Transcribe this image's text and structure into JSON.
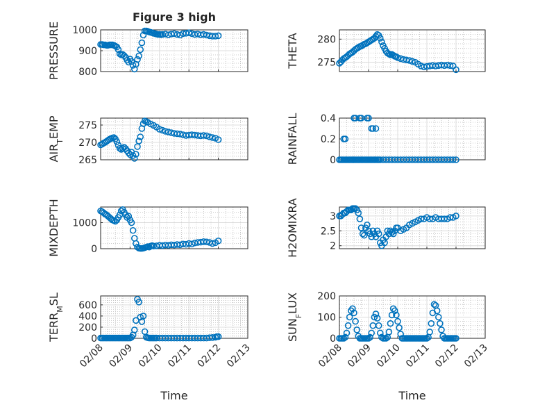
{
  "figure": {
    "title": "Figure 3 high"
  },
  "colors": {
    "marker": "#0072BD",
    "axis": "#262626",
    "grid": "#dcdcdc"
  },
  "chart_data": [
    {
      "type": "scatter",
      "id": "pressure",
      "ylabel": "PRESSURE",
      "title": "Figure 3 high",
      "xlim": [
        0,
        5
      ],
      "ylim": [
        800,
        1000
      ],
      "yticks": [
        800,
        900,
        1000
      ],
      "xticks": [
        0,
        1,
        2,
        3,
        4,
        5
      ],
      "xticklabels": [
        "02/08",
        "02/09",
        "02/10",
        "02/11",
        "02/12",
        "02/13"
      ],
      "x": [
        0.0,
        0.05,
        0.1,
        0.15,
        0.2,
        0.25,
        0.3,
        0.35,
        0.4,
        0.45,
        0.5,
        0.55,
        0.6,
        0.65,
        0.7,
        0.75,
        0.8,
        0.85,
        0.9,
        0.95,
        1.0,
        1.05,
        1.1,
        1.15,
        1.2,
        1.25,
        1.3,
        1.35,
        1.4,
        1.45,
        1.5,
        1.55,
        1.6,
        1.65,
        1.7,
        1.75,
        1.8,
        1.85,
        1.9,
        1.95,
        2.0,
        2.05,
        2.1,
        2.2,
        2.3,
        2.4,
        2.5,
        2.6,
        2.7,
        2.8,
        2.9,
        3.0,
        3.1,
        3.2,
        3.3,
        3.4,
        3.5,
        3.6,
        3.7,
        3.8,
        3.9,
        4.0
      ],
      "y": [
        930,
        930,
        928,
        928,
        926,
        926,
        928,
        928,
        928,
        926,
        922,
        918,
        905,
        885,
        880,
        882,
        876,
        868,
        855,
        845,
        860,
        848,
        830,
        812,
        835,
        858,
        875,
        905,
        938,
        975,
        995,
        995,
        993,
        990,
        988,
        986,
        984,
        982,
        980,
        978,
        978,
        977,
        978,
        980,
        976,
        980,
        982,
        978,
        975,
        982,
        984,
        986,
        982,
        978,
        980,
        976,
        978,
        975,
        972,
        970,
        970,
        972
      ]
    },
    {
      "type": "scatter",
      "id": "theta",
      "ylabel": "THETA",
      "xlim": [
        0,
        5
      ],
      "ylim": [
        273,
        282
      ],
      "yticks": [
        275,
        280
      ],
      "xticks": [
        0,
        1,
        2,
        3,
        4,
        5
      ],
      "xticklabels": [
        "02/08",
        "02/09",
        "02/10",
        "02/11",
        "02/12",
        "02/13"
      ],
      "x": [
        0.0,
        0.05,
        0.1,
        0.15,
        0.2,
        0.25,
        0.3,
        0.35,
        0.4,
        0.45,
        0.5,
        0.55,
        0.6,
        0.65,
        0.7,
        0.75,
        0.8,
        0.85,
        0.9,
        0.95,
        1.0,
        1.05,
        1.1,
        1.15,
        1.2,
        1.25,
        1.3,
        1.35,
        1.4,
        1.45,
        1.5,
        1.55,
        1.6,
        1.65,
        1.7,
        1.75,
        1.8,
        1.85,
        1.9,
        1.95,
        2.0,
        2.1,
        2.2,
        2.3,
        2.4,
        2.5,
        2.6,
        2.7,
        2.8,
        2.9,
        3.0,
        3.1,
        3.2,
        3.3,
        3.4,
        3.5,
        3.6,
        3.7,
        3.8,
        3.9,
        4.0
      ],
      "y": [
        274.8,
        275.1,
        275.5,
        275.8,
        276.0,
        276.2,
        276.5,
        276.8,
        277.0,
        277.2,
        277.5,
        277.8,
        278.0,
        278.2,
        278.4,
        278.5,
        278.7,
        278.9,
        279.0,
        279.2,
        279.4,
        279.6,
        279.8,
        280.0,
        280.2,
        280.6,
        281.0,
        280.8,
        280.2,
        279.4,
        278.6,
        278.0,
        277.4,
        277.0,
        276.8,
        276.6,
        276.7,
        276.5,
        276.3,
        276.2,
        276.0,
        275.8,
        275.6,
        275.5,
        275.4,
        275.2,
        275.0,
        274.6,
        274.2,
        274.0,
        274.1,
        274.2,
        274.3,
        274.2,
        274.3,
        274.4,
        274.3,
        274.4,
        274.3,
        274.2,
        273.4
      ]
    },
    {
      "type": "scatter",
      "id": "air_temp",
      "ylabel_main": "AIR",
      "ylabel_sub": "T",
      "ylabel_rest": "EMP",
      "xlim": [
        0,
        5
      ],
      "ylim": [
        265,
        277
      ],
      "yticks": [
        265,
        270,
        275
      ],
      "xticks": [
        0,
        1,
        2,
        3,
        4,
        5
      ],
      "xticklabels": [
        "02/08",
        "02/09",
        "02/10",
        "02/11",
        "02/12",
        "02/13"
      ],
      "x": [
        0.0,
        0.05,
        0.1,
        0.15,
        0.2,
        0.25,
        0.3,
        0.35,
        0.4,
        0.45,
        0.5,
        0.55,
        0.6,
        0.65,
        0.7,
        0.75,
        0.8,
        0.85,
        0.9,
        0.95,
        1.0,
        1.05,
        1.1,
        1.15,
        1.2,
        1.25,
        1.3,
        1.35,
        1.4,
        1.45,
        1.5,
        1.55,
        1.6,
        1.7,
        1.8,
        1.9,
        2.0,
        2.1,
        2.2,
        2.3,
        2.4,
        2.5,
        2.6,
        2.7,
        2.8,
        2.9,
        3.0,
        3.1,
        3.2,
        3.3,
        3.4,
        3.5,
        3.6,
        3.7,
        3.8,
        3.9,
        4.0
      ],
      "y": [
        269.3,
        269.5,
        269.8,
        270.0,
        270.3,
        270.6,
        270.9,
        271.1,
        271.3,
        271.4,
        271.0,
        270.2,
        269.2,
        268.3,
        268.0,
        268.3,
        268.6,
        268.2,
        267.6,
        267.0,
        266.5,
        267.2,
        266.2,
        265.4,
        266.6,
        268.8,
        270.4,
        271.6,
        274.0,
        275.4,
        276.2,
        276.0,
        275.8,
        275.3,
        274.9,
        274.4,
        273.8,
        273.5,
        273.2,
        273.0,
        272.8,
        272.6,
        272.5,
        272.4,
        272.2,
        272.0,
        272.1,
        272.2,
        272.1,
        272.0,
        271.9,
        272.0,
        271.9,
        271.6,
        271.4,
        271.2,
        270.8
      ]
    },
    {
      "type": "scatter",
      "id": "rainfall",
      "ylabel": "RAINFALL",
      "xlim": [
        0,
        5
      ],
      "ylim": [
        0,
        0.4
      ],
      "yticks": [
        0,
        0.2,
        0.4
      ],
      "yticklabels": [
        "0",
        "0.2",
        "0.4"
      ],
      "xticks": [
        0,
        1,
        2,
        3,
        4,
        5
      ],
      "xticklabels": [
        "02/08",
        "02/09",
        "02/10",
        "02/11",
        "02/12",
        "02/13"
      ],
      "x": [
        0.0,
        0.05,
        0.1,
        0.15,
        0.2,
        0.25,
        0.3,
        0.35,
        0.4,
        0.45,
        0.5,
        0.55,
        0.6,
        0.65,
        0.7,
        0.75,
        0.8,
        0.85,
        0.9,
        0.95,
        1.0,
        1.05,
        1.1,
        1.15,
        1.2,
        1.25,
        1.3,
        1.35,
        1.4,
        1.5,
        1.6,
        1.7,
        1.8,
        1.9,
        2.0,
        2.1,
        2.2,
        2.3,
        2.4,
        2.5,
        2.6,
        2.7,
        2.8,
        2.9,
        3.0,
        3.1,
        3.2,
        3.3,
        3.4,
        3.5,
        3.6,
        3.7,
        3.8,
        3.9,
        4.0,
        0.2,
        0.15,
        0.5,
        0.55,
        0.7,
        0.75,
        0.95,
        1.0,
        1.1,
        1.15,
        1.25
      ],
      "y": [
        0,
        0,
        0,
        0,
        0,
        0,
        0,
        0,
        0,
        0,
        0,
        0,
        0,
        0,
        0,
        0,
        0,
        0,
        0,
        0,
        0,
        0,
        0,
        0,
        0,
        0,
        0,
        0,
        0,
        0,
        0,
        0,
        0,
        0,
        0,
        0,
        0,
        0,
        0,
        0,
        0,
        0,
        0,
        0,
        0,
        0,
        0,
        0,
        0,
        0,
        0,
        0,
        0,
        0,
        0,
        0.2,
        0.2,
        0.4,
        0.4,
        0.4,
        0.4,
        0.4,
        0.4,
        0.3,
        0.3,
        0.3
      ]
    },
    {
      "type": "scatter",
      "id": "mixdepth",
      "ylabel": "MIXDEPTH",
      "xlim": [
        0,
        5
      ],
      "ylim": [
        0,
        1600
      ],
      "yticks": [
        0,
        1000
      ],
      "xticks": [
        0,
        1,
        2,
        3,
        4,
        5
      ],
      "xticklabels": [
        "02/08",
        "02/09",
        "02/10",
        "02/11",
        "02/12",
        "02/13"
      ],
      "x": [
        0.0,
        0.05,
        0.1,
        0.15,
        0.2,
        0.25,
        0.3,
        0.35,
        0.4,
        0.45,
        0.5,
        0.55,
        0.6,
        0.65,
        0.7,
        0.75,
        0.8,
        0.85,
        0.9,
        0.95,
        1.0,
        1.05,
        1.1,
        1.15,
        1.2,
        1.25,
        1.3,
        1.35,
        1.4,
        1.45,
        1.5,
        1.55,
        1.6,
        1.65,
        1.7,
        1.75,
        1.8,
        1.9,
        2.0,
        2.1,
        2.2,
        2.3,
        2.4,
        2.5,
        2.6,
        2.7,
        2.8,
        2.9,
        3.0,
        3.1,
        3.2,
        3.3,
        3.4,
        3.5,
        3.6,
        3.7,
        3.8,
        3.9,
        4.0
      ],
      "y": [
        1450,
        1420,
        1380,
        1330,
        1300,
        1250,
        1200,
        1150,
        1100,
        1080,
        1050,
        1100,
        1200,
        1300,
        1450,
        1500,
        1400,
        1300,
        1200,
        1250,
        1100,
        1000,
        700,
        400,
        200,
        60,
        20,
        10,
        10,
        20,
        40,
        60,
        80,
        60,
        100,
        120,
        100,
        110,
        130,
        120,
        140,
        130,
        150,
        140,
        160,
        150,
        180,
        170,
        200,
        180,
        220,
        240,
        250,
        270,
        260,
        240,
        200,
        230,
        300
      ]
    },
    {
      "type": "scatter",
      "id": "h2omixra",
      "ylabel": "H2OMIXRA",
      "xlim": [
        0,
        5
      ],
      "ylim": [
        1.9,
        3.3
      ],
      "yticks": [
        2,
        2.5,
        3
      ],
      "yticklabels": [
        "2",
        "2.5",
        "3"
      ],
      "xticks": [
        0,
        1,
        2,
        3,
        4,
        5
      ],
      "xticklabels": [
        "02/08",
        "02/09",
        "02/10",
        "02/11",
        "02/12",
        "02/13"
      ],
      "x": [
        0.0,
        0.05,
        0.1,
        0.15,
        0.2,
        0.25,
        0.3,
        0.35,
        0.4,
        0.45,
        0.5,
        0.55,
        0.6,
        0.65,
        0.7,
        0.75,
        0.8,
        0.85,
        0.9,
        0.95,
        1.0,
        1.05,
        1.1,
        1.15,
        1.2,
        1.25,
        1.3,
        1.35,
        1.4,
        1.45,
        1.5,
        1.55,
        1.6,
        1.65,
        1.7,
        1.75,
        1.8,
        1.85,
        1.9,
        1.95,
        2.0,
        2.1,
        2.2,
        2.3,
        2.4,
        2.5,
        2.6,
        2.7,
        2.8,
        2.9,
        3.0,
        3.1,
        3.2,
        3.3,
        3.4,
        3.5,
        3.6,
        3.7,
        3.8,
        3.9,
        4.0
      ],
      "y": [
        3.0,
        3.0,
        3.05,
        3.1,
        3.1,
        3.15,
        3.2,
        3.2,
        3.2,
        3.25,
        3.25,
        3.25,
        3.2,
        3.1,
        2.9,
        2.6,
        2.4,
        2.35,
        2.6,
        2.7,
        2.5,
        2.4,
        2.3,
        2.5,
        2.4,
        2.3,
        2.5,
        2.4,
        2.1,
        2.0,
        2.2,
        2.1,
        2.3,
        2.5,
        2.4,
        2.5,
        2.45,
        2.4,
        2.5,
        2.6,
        2.6,
        2.5,
        2.55,
        2.6,
        2.7,
        2.75,
        2.8,
        2.85,
        2.9,
        2.9,
        2.95,
        2.9,
        2.9,
        2.95,
        2.9,
        2.9,
        2.9,
        2.9,
        2.95,
        2.95,
        3.0
      ]
    },
    {
      "type": "scatter",
      "id": "terr_msl",
      "ylabel_main": "TERR",
      "ylabel_sub": "M",
      "ylabel_rest": "SL",
      "xlim": [
        0,
        5
      ],
      "ylim": [
        0,
        760
      ],
      "yticks": [
        0,
        200,
        400,
        600
      ],
      "xticks": [
        0,
        1,
        2,
        3,
        4,
        5
      ],
      "xticklabels": [
        "02/08",
        "02/09",
        "02/10",
        "02/11",
        "02/12",
        "02/13"
      ],
      "x": [
        0.0,
        0.05,
        0.1,
        0.15,
        0.2,
        0.25,
        0.3,
        0.35,
        0.4,
        0.45,
        0.5,
        0.55,
        0.6,
        0.65,
        0.7,
        0.75,
        0.8,
        0.85,
        0.9,
        0.95,
        1.0,
        1.05,
        1.1,
        1.15,
        1.2,
        1.25,
        1.3,
        1.35,
        1.4,
        1.45,
        1.5,
        1.55,
        1.6,
        1.65,
        1.7,
        1.75,
        1.8,
        1.85,
        1.9,
        2.0,
        2.1,
        2.2,
        2.3,
        2.4,
        2.5,
        2.6,
        2.7,
        2.8,
        2.9,
        3.0,
        3.1,
        3.2,
        3.3,
        3.4,
        3.5,
        3.6,
        3.7,
        3.8,
        3.9,
        3.95,
        4.0
      ],
      "y": [
        5,
        5,
        5,
        5,
        5,
        5,
        5,
        5,
        5,
        5,
        5,
        5,
        5,
        5,
        5,
        5,
        5,
        5,
        5,
        5,
        5,
        20,
        60,
        150,
        320,
        700,
        650,
        380,
        300,
        400,
        120,
        20,
        10,
        5,
        5,
        5,
        5,
        5,
        5,
        5,
        5,
        5,
        5,
        5,
        5,
        5,
        5,
        5,
        5,
        5,
        5,
        5,
        5,
        5,
        5,
        5,
        10,
        15,
        20,
        30,
        30
      ]
    },
    {
      "type": "scatter",
      "id": "sun_flux",
      "ylabel_main": "SUN",
      "ylabel_sub": "F",
      "ylabel_rest": "LUX",
      "xlim": [
        0,
        5
      ],
      "ylim": [
        0,
        200
      ],
      "yticks": [
        0,
        100,
        200
      ],
      "xticks": [
        0,
        1,
        2,
        3,
        4,
        5
      ],
      "xticklabels": [
        "02/08",
        "02/09",
        "02/10",
        "02/11",
        "02/12",
        "02/13"
      ],
      "x": [
        0.0,
        0.05,
        0.1,
        0.15,
        0.2,
        0.25,
        0.3,
        0.35,
        0.4,
        0.45,
        0.5,
        0.55,
        0.6,
        0.65,
        0.7,
        0.75,
        0.8,
        0.85,
        0.9,
        0.95,
        1.0,
        1.05,
        1.1,
        1.15,
        1.2,
        1.25,
        1.3,
        1.35,
        1.4,
        1.45,
        1.5,
        1.55,
        1.6,
        1.65,
        1.7,
        1.75,
        1.8,
        1.85,
        1.9,
        1.95,
        2.0,
        2.05,
        2.1,
        2.15,
        2.2,
        2.25,
        2.3,
        2.35,
        2.4,
        2.45,
        2.5,
        2.55,
        2.6,
        2.65,
        2.7,
        2.75,
        2.8,
        2.85,
        2.9,
        2.95,
        3.0,
        3.05,
        3.1,
        3.15,
        3.2,
        3.25,
        3.3,
        3.35,
        3.4,
        3.45,
        3.5,
        3.55,
        3.6,
        3.65,
        3.7,
        3.75,
        3.8,
        3.85,
        3.9,
        3.95,
        4.0
      ],
      "y": [
        0,
        0,
        0,
        0,
        5,
        25,
        60,
        100,
        130,
        140,
        120,
        80,
        40,
        10,
        0,
        0,
        0,
        0,
        0,
        0,
        0,
        5,
        25,
        60,
        100,
        115,
        95,
        60,
        25,
        5,
        0,
        0,
        0,
        5,
        30,
        70,
        110,
        140,
        130,
        110,
        80,
        50,
        20,
        0,
        0,
        0,
        0,
        0,
        0,
        0,
        0,
        0,
        0,
        0,
        0,
        0,
        0,
        0,
        0,
        0,
        0,
        5,
        30,
        70,
        120,
        160,
        155,
        130,
        100,
        70,
        40,
        10,
        0,
        0,
        0,
        0,
        0,
        0,
        0,
        0,
        0
      ]
    }
  ],
  "panels": {
    "xlabel_left": "Time",
    "xlabel_right": "Time"
  }
}
